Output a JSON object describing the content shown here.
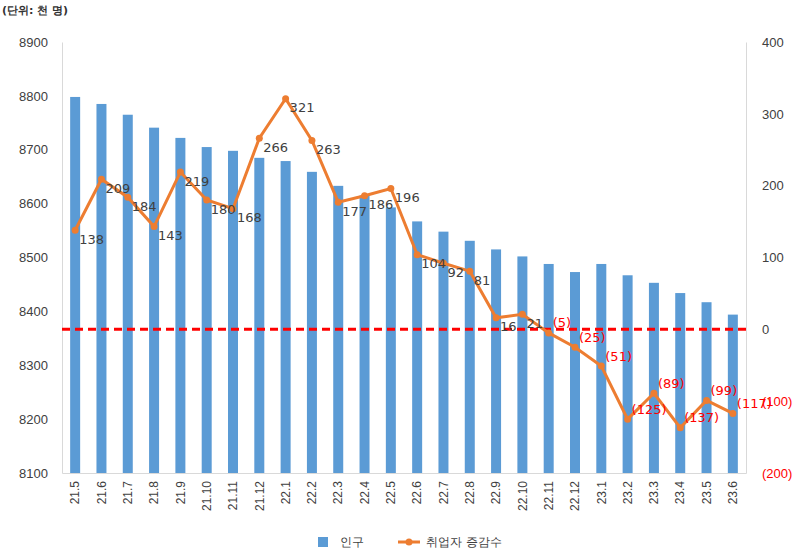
{
  "chart_data": {
    "type": "bar",
    "ylabel": "(단위: 천 명)",
    "categories": [
      "21.5",
      "21.6",
      "21.7",
      "21.8",
      "21.9",
      "21.10",
      "21.11",
      "21.12",
      "22.1",
      "22.2",
      "22.3",
      "22.4",
      "22.5",
      "22.6",
      "22.7",
      "22.8",
      "22.9",
      "22.10",
      "22.11",
      "22.12",
      "23.1",
      "23.2",
      "23.3",
      "23.4",
      "23.5",
      "23.6"
    ],
    "series": [
      {
        "name": "인구",
        "type": "bar",
        "color": "#5b9bd5",
        "axis": "y",
        "values": [
          8798,
          8785,
          8765,
          8741,
          8722,
          8705,
          8698,
          8685,
          8679,
          8659,
          8633,
          8615,
          8593,
          8567,
          8548,
          8531,
          8515,
          8502,
          8488,
          8473,
          8488,
          8467,
          8453,
          8434,
          8417,
          8394
        ]
      },
      {
        "name": "취업자 증감수",
        "type": "line",
        "color": "#ed7d31",
        "axis": "y2",
        "marker": "circle",
        "line_style": "solid",
        "data_labels": true,
        "values": [
          138,
          209,
          184,
          143,
          219,
          180,
          168,
          266,
          321,
          263,
          177,
          186,
          196,
          104,
          92,
          81,
          16,
          21,
          -5,
          -25,
          -51,
          -125,
          -89,
          -137,
          -99,
          -117
        ],
        "value_labels": [
          "138",
          "209",
          "184",
          "143",
          "219",
          "180",
          "168",
          "266",
          "321",
          "263",
          "177",
          "186",
          "196",
          "104",
          "92",
          "81",
          "16",
          "21",
          "(5)",
          "(25)",
          "(51)",
          "(125)",
          "(89)",
          "(137)",
          "(99)",
          "(117)"
        ]
      }
    ],
    "ylim": [
      8100,
      8900
    ],
    "yticks": [
      8100,
      8200,
      8300,
      8400,
      8500,
      8600,
      8700,
      8800,
      8900
    ],
    "y2lim": [
      -200,
      400
    ],
    "y2ticks": [
      {
        "value": -200,
        "label": "(200)"
      },
      {
        "value": -100,
        "label": "(100)"
      },
      0,
      100,
      200,
      300,
      400
    ],
    "reference_lines": [
      {
        "axis": "y2",
        "value": 0,
        "color": "#ff0000",
        "line_style": "dashed"
      }
    ],
    "grid": false,
    "legend": "bottom"
  }
}
